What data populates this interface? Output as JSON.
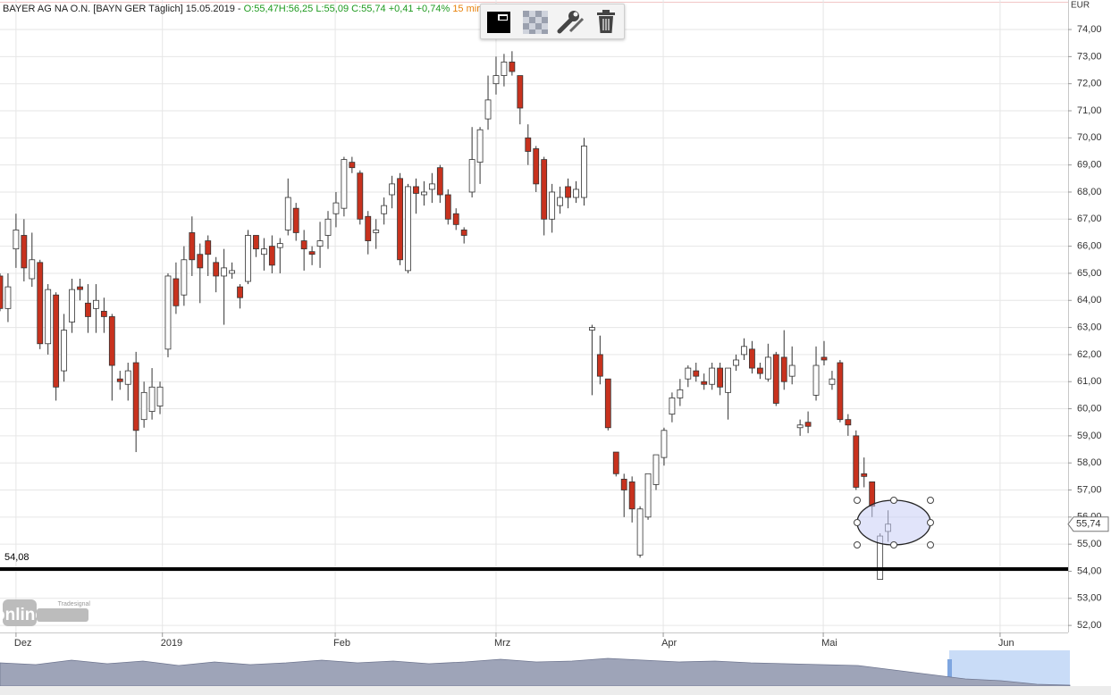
{
  "chart_data": {
    "type": "candlestick",
    "title": "BAYER AG NA O.N. [BAYN GER Täglich] 15.05.2019 -",
    "quote_labels": [
      "O:55,47",
      "H:56,25",
      "L:55,09",
      "C:55,74",
      "+0,41",
      "+0,74%"
    ],
    "interval": "15 min",
    "currency": "EUR",
    "watermark": {
      "brand": "Tradesignal",
      "text": "online"
    },
    "up_color": "#ffffff",
    "down_color": "#c8321e",
    "grid": true,
    "x": [
      0,
      1,
      2,
      3,
      4,
      5,
      6,
      7,
      8,
      9,
      10,
      11,
      12,
      13,
      14,
      15,
      16,
      17,
      18,
      19,
      20,
      21,
      22,
      23,
      24,
      25,
      26,
      27,
      28,
      29,
      30,
      31,
      32,
      33,
      34,
      35,
      36,
      37,
      38,
      39,
      40,
      41,
      42,
      43,
      44,
      45,
      46,
      47,
      48,
      49,
      50,
      51,
      52,
      53,
      54,
      55,
      56,
      57,
      58,
      59,
      60,
      61,
      62,
      63,
      64,
      65,
      66,
      67,
      68,
      69,
      70,
      71,
      72,
      73,
      74,
      75,
      76,
      77,
      78,
      79,
      80,
      81,
      82,
      83,
      84,
      85,
      86,
      87,
      88,
      89,
      90,
      91,
      92,
      93,
      94,
      95,
      96,
      97,
      98,
      99,
      100,
      101,
      102,
      103,
      104,
      105,
      106,
      107,
      108,
      109,
      110,
      111
    ],
    "open": [
      64.9,
      63.7,
      65.9,
      66.4,
      64.8,
      65.4,
      62.4,
      64.2,
      61.4,
      63.2,
      64.5,
      63.9,
      63.7,
      63.6,
      63.4,
      61.1,
      60.9,
      61.7,
      59.6,
      59.9,
      60.1,
      62.2,
      64.8,
      64.2,
      66.5,
      65.7,
      66.2,
      65.4,
      64.9,
      65.0,
      64.5,
      64.7,
      66.4,
      65.7,
      66.0,
      65.95,
      66.6,
      67.4,
      66.2,
      65.8,
      66.0,
      66.4,
      67.2,
      67.4,
      69.1,
      68.7,
      67.1,
      66.5,
      67.2,
      67.9,
      68.5,
      65.1,
      68.2,
      67.9,
      68.1,
      68.9,
      67.9,
      67.2,
      66.6,
      68.0,
      69.1,
      70.7,
      72.0,
      72.3,
      72.8,
      72.3,
      70.0,
      69.6,
      69.2,
      67.0,
      67.5,
      68.2,
      67.8,
      67.8,
      62.9,
      62.0,
      61.1,
      58.4,
      57.4,
      57.3,
      54.6,
      56.0,
      57.2,
      58.2,
      59.8,
      60.4,
      61.1,
      61.4,
      61.0,
      60.9,
      61.5,
      60.6,
      61.6,
      62.0,
      62.2,
      61.5,
      61.1,
      62.0,
      61.9,
      61.2,
      59.3,
      59.5,
      60.5,
      61.9,
      60.9,
      61.7,
      59.6,
      59.0,
      57.6,
      57.3,
      53.7,
      55.47
    ],
    "high": [
      65.0,
      65.0,
      67.2,
      67.0,
      66.5,
      65.5,
      64.6,
      64.3,
      63.5,
      64.8,
      64.8,
      64.6,
      64.6,
      64.1,
      63.5,
      61.4,
      61.7,
      62.1,
      61.0,
      61.5,
      61.0,
      65.0,
      65.4,
      66.0,
      67.1,
      66.1,
      66.4,
      65.6,
      65.9,
      65.4,
      64.6,
      66.6,
      66.4,
      66.3,
      66.4,
      66.3,
      68.5,
      67.6,
      66.6,
      66.0,
      66.9,
      67.3,
      68.0,
      69.3,
      69.3,
      68.8,
      67.3,
      67.0,
      67.8,
      68.6,
      68.7,
      68.3,
      68.5,
      68.4,
      68.7,
      69.0,
      68.1,
      67.4,
      66.7,
      70.4,
      70.4,
      72.3,
      73.0,
      73.1,
      73.2,
      72.3,
      70.5,
      69.7,
      69.3,
      68.3,
      68.2,
      68.5,
      68.4,
      70.0,
      63.1,
      62.7,
      61.1,
      58.4,
      57.6,
      57.5,
      56.4,
      57.6,
      58.3,
      59.3,
      60.6,
      61.1,
      61.6,
      61.7,
      61.3,
      61.7,
      61.7,
      61.5,
      62.0,
      62.6,
      62.5,
      61.7,
      62.4,
      62.1,
      62.9,
      62.3,
      59.6,
      59.9,
      62.3,
      62.5,
      61.4,
      61.8,
      59.8,
      59.2,
      58.2,
      57.3,
      55.4,
      56.25
    ],
    "low": [
      63.6,
      63.2,
      65.2,
      64.7,
      64.5,
      62.2,
      62.0,
      60.3,
      61.0,
      62.8,
      64.0,
      62.8,
      62.8,
      62.8,
      60.3,
      60.7,
      60.3,
      58.4,
      59.3,
      59.6,
      59.8,
      61.9,
      63.5,
      63.8,
      64.9,
      63.9,
      64.9,
      64.3,
      63.1,
      64.8,
      63.7,
      64.6,
      65.6,
      65.1,
      65.0,
      65.0,
      66.4,
      66.2,
      65.1,
      65.3,
      65.2,
      65.9,
      66.7,
      67.1,
      68.7,
      66.8,
      65.7,
      65.9,
      66.8,
      67.4,
      65.3,
      65.0,
      67.2,
      67.5,
      67.6,
      67.6,
      66.8,
      66.6,
      66.1,
      67.8,
      68.3,
      70.3,
      71.6,
      71.9,
      72.3,
      70.5,
      69.0,
      68.0,
      66.4,
      66.5,
      67.2,
      67.4,
      67.6,
      67.5,
      60.5,
      60.9,
      59.2,
      57.5,
      56.0,
      55.8,
      54.5,
      55.9,
      57.0,
      57.9,
      59.5,
      60.1,
      60.8,
      61.0,
      60.7,
      60.7,
      60.5,
      59.6,
      61.4,
      61.8,
      61.3,
      61.1,
      61.0,
      60.1,
      60.7,
      60.9,
      59.0,
      59.1,
      60.3,
      61.6,
      60.7,
      59.5,
      59.0,
      57.0,
      57.1,
      56.0,
      53.7,
      55.09
    ],
    "close": [
      63.7,
      64.5,
      66.6,
      65.2,
      65.5,
      62.4,
      64.4,
      60.8,
      62.9,
      64.4,
      64.4,
      63.4,
      64.0,
      63.4,
      61.6,
      61.0,
      61.4,
      59.2,
      60.6,
      60.8,
      60.8,
      64.9,
      63.8,
      65.5,
      65.5,
      65.2,
      65.7,
      64.9,
      65.2,
      65.1,
      64.1,
      66.4,
      65.9,
      65.9,
      65.3,
      66.1,
      67.8,
      66.5,
      65.9,
      65.7,
      66.2,
      67.0,
      67.6,
      69.2,
      68.9,
      67.0,
      66.2,
      66.6,
      67.5,
      68.3,
      65.5,
      68.2,
      67.95,
      68.0,
      68.3,
      67.9,
      67.0,
      66.8,
      66.4,
      69.2,
      70.3,
      71.4,
      72.3,
      72.8,
      72.45,
      71.1,
      69.5,
      68.3,
      67.0,
      68.0,
      67.8,
      67.8,
      68.1,
      69.7,
      63.0,
      61.2,
      59.3,
      57.6,
      57.0,
      56.3,
      56.3,
      57.6,
      58.3,
      59.2,
      60.4,
      60.7,
      61.5,
      61.2,
      60.9,
      61.5,
      60.8,
      61.5,
      61.8,
      62.3,
      61.5,
      61.3,
      61.9,
      60.2,
      61.0,
      61.6,
      59.4,
      59.35,
      61.6,
      61.8,
      61.1,
      59.6,
      59.4,
      57.1,
      57.5,
      56.4,
      55.3,
      55.74
    ],
    "xlim": [
      0,
      133.5
    ],
    "xticks": [
      {
        "value": 2.0,
        "label": "Dez"
      },
      {
        "value": 20.3,
        "label": "2019"
      },
      {
        "value": 41.9,
        "label": "Feb"
      },
      {
        "value": 62.0,
        "label": "Mrz"
      },
      {
        "value": 82.9,
        "label": "Apr"
      },
      {
        "value": 102.9,
        "label": "Mai"
      },
      {
        "value": 125.0,
        "label": "Jun"
      }
    ],
    "ylim": [
      51.74,
      75.09
    ],
    "yticks": [
      {
        "value": 52,
        "label": "52,00"
      },
      {
        "value": 53,
        "label": "53,00"
      },
      {
        "value": 54,
        "label": "54,00"
      },
      {
        "value": 55,
        "label": "55,00"
      },
      {
        "value": 56,
        "label": "56,00"
      },
      {
        "value": 57,
        "label": "57,00"
      },
      {
        "value": 58,
        "label": "58,00"
      },
      {
        "value": 59,
        "label": "59,00"
      },
      {
        "value": 60,
        "label": "60,00"
      },
      {
        "value": 61,
        "label": "61,00"
      },
      {
        "value": 62,
        "label": "62,00"
      },
      {
        "value": 63,
        "label": "63,00"
      },
      {
        "value": 64,
        "label": "64,00"
      },
      {
        "value": 65,
        "label": "65,00"
      },
      {
        "value": 66,
        "label": "66,00"
      },
      {
        "value": 67,
        "label": "67,00"
      },
      {
        "value": 68,
        "label": "68,00"
      },
      {
        "value": 69,
        "label": "69,00"
      },
      {
        "value": 70,
        "label": "70,00"
      },
      {
        "value": 71,
        "label": "71,00"
      },
      {
        "value": 72,
        "label": "72,00"
      },
      {
        "value": 73,
        "label": "73,00"
      },
      {
        "value": 74,
        "label": "74,00"
      }
    ],
    "horizontal_line": {
      "value": 54.08,
      "label": "54,08"
    },
    "last_price": {
      "value": 55.74,
      "label": "55,74"
    }
  }
}
